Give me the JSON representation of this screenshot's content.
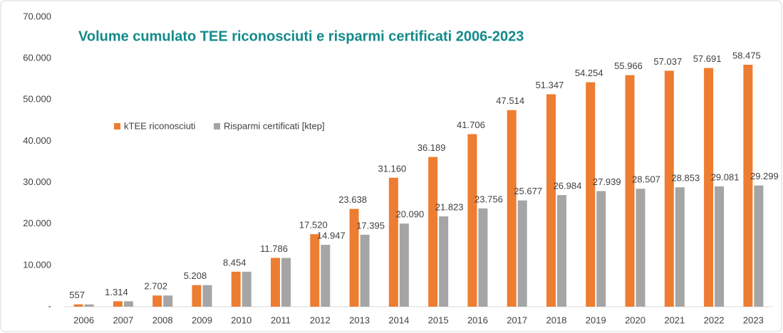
{
  "chart_data": {
    "type": "bar",
    "title": "Volume cumulato TEE riconosciuti e risparmi certificati 2006-2023",
    "categories": [
      "2006",
      "2007",
      "2008",
      "2009",
      "2010",
      "2011",
      "2012",
      "2013",
      "2014",
      "2015",
      "2016",
      "2017",
      "2018",
      "2019",
      "2020",
      "2021",
      "2022",
      "2023"
    ],
    "series": [
      {
        "name": "kTEE riconosciuti",
        "color": "#ed7d31",
        "values": [
          557,
          1314,
          2702,
          5208,
          8454,
          11786,
          17520,
          23638,
          31160,
          36189,
          41706,
          47514,
          51347,
          54254,
          55966,
          57037,
          57691,
          58475
        ],
        "value_labels": [
          "557",
          "1.314",
          "2.702",
          "5.208",
          "8.454",
          "11.786",
          "17.520",
          "23.638",
          "31.160",
          "36.189",
          "41.706",
          "47.514",
          "51.347",
          "54.254",
          "55.966",
          "57.037",
          "57.691",
          "58.475"
        ]
      },
      {
        "name": "Risparmi certificati [ktep]",
        "color": "#a5a5a5",
        "values": [
          550,
          1310,
          2700,
          5200,
          8450,
          11780,
          14947,
          17395,
          20090,
          21823,
          23756,
          25677,
          26984,
          27939,
          28507,
          28853,
          29081,
          29299
        ],
        "value_labels": [
          null,
          null,
          null,
          null,
          null,
          null,
          "14.947",
          "17.395",
          "20.090",
          "21.823",
          "23.756",
          "25.677",
          "26.984",
          "27.939",
          "28.507",
          "28.853",
          "29.081",
          "29.299"
        ]
      }
    ],
    "ylim": [
      0,
      70000
    ],
    "yticks": [
      {
        "value": 0,
        "label": "-"
      },
      {
        "value": 10000,
        "label": "10.000"
      },
      {
        "value": 20000,
        "label": "20.000"
      },
      {
        "value": 30000,
        "label": "30.000"
      },
      {
        "value": 40000,
        "label": "40.000"
      },
      {
        "value": 50000,
        "label": "50.000"
      },
      {
        "value": 60000,
        "label": "60.000"
      },
      {
        "value": 70000,
        "label": "70.000"
      }
    ],
    "grid": false,
    "legend": "upper left"
  }
}
